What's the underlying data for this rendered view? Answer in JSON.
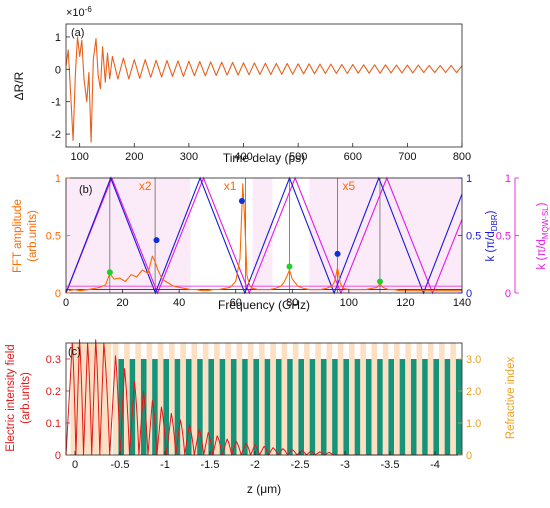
{
  "colors": {
    "trace": "#e8601c",
    "axis_left_b": "#ff6a00",
    "axis_right1_b": "#1a1adb",
    "axis_right2_b": "#e619e6",
    "violet": "#7a3ee6",
    "shade_pink": "#fbeaf8",
    "shade_peach": "#fde0c4",
    "green_bar": "#16947a",
    "marker_blue": "#0a2fd6",
    "marker_green": "#1fcf2c",
    "efield": "#e01818",
    "axis_c_right": "#f0a020",
    "axis_c_left": "#e01818"
  },
  "chart_data": [
    {
      "type": "line",
      "panel_label": "(a)",
      "exponent_label": "×10",
      "exponent_power": "-6",
      "xlabel": "Time delay (ps)",
      "ylabel": "ΔR/R",
      "xlim": [
        75,
        800
      ],
      "ylim": [
        -2.4,
        1.4
      ],
      "xticks": [
        100,
        200,
        300,
        400,
        500,
        600,
        700,
        800
      ],
      "yticks": [
        -2,
        -1,
        0,
        1
      ],
      "grid": false,
      "series": [
        {
          "x": [
            75,
            79,
            84,
            88,
            92,
            96,
            100,
            104,
            108,
            113,
            117,
            121,
            125,
            130,
            134,
            138,
            142,
            147,
            151,
            155,
            160,
            170,
            180,
            190,
            200,
            210,
            220,
            230,
            240,
            250,
            260,
            270,
            280,
            290,
            300,
            310,
            320,
            330,
            340,
            350,
            360,
            370,
            380,
            390,
            400,
            410,
            420,
            430,
            440,
            450,
            460,
            470,
            480,
            490,
            500,
            510,
            520,
            530,
            540,
            550,
            560,
            570,
            580,
            590,
            600,
            610,
            620,
            630,
            640,
            650,
            660,
            670,
            680,
            690,
            700,
            710,
            720,
            730,
            740,
            750,
            760,
            770,
            780,
            790,
            800
          ],
          "y": [
            0.1,
            0.6,
            -0.9,
            -2.2,
            -0.2,
            1.0,
            0.4,
            0.9,
            -0.3,
            -1.0,
            -0.1,
            -2.25,
            0.3,
            0.95,
            -0.2,
            -0.6,
            0.7,
            -0.4,
            0.5,
            -0.3,
            0.4,
            -0.3,
            0.35,
            -0.3,
            0.3,
            -0.28,
            0.3,
            -0.25,
            0.28,
            -0.24,
            0.27,
            -0.22,
            0.26,
            -0.22,
            0.25,
            -0.2,
            0.24,
            -0.2,
            0.23,
            -0.19,
            0.22,
            -0.18,
            0.21,
            -0.18,
            0.2,
            -0.17,
            0.2,
            -0.16,
            0.19,
            -0.16,
            0.18,
            -0.15,
            0.18,
            -0.15,
            0.17,
            -0.14,
            0.17,
            -0.14,
            0.16,
            -0.13,
            0.16,
            -0.13,
            0.15,
            -0.13,
            0.15,
            -0.12,
            0.14,
            -0.12,
            0.14,
            -0.12,
            0.14,
            -0.11,
            0.13,
            -0.11,
            0.13,
            -0.11,
            0.13,
            -0.1,
            0.12,
            -0.1,
            0.12,
            -0.1,
            0.12,
            -0.1,
            0.11
          ]
        }
      ]
    },
    {
      "type": "line",
      "panel_label": "(b)",
      "xlabel": "Frequency (GHz)",
      "ylabel_left": "FFT amplitude",
      "ylabel_left_units": "(arb.units)",
      "ylabel_right1": "k (π/d",
      "ylabel_right1_sub": "DBR",
      "ylabel_right2": "k (π/d",
      "ylabel_right2_sub": "MQW-SL",
      "xlim": [
        0,
        140
      ],
      "ylim": [
        0,
        1
      ],
      "xticks": [
        0,
        20,
        40,
        60,
        80,
        100,
        120,
        140
      ],
      "yticks_left": [
        0,
        0.5,
        1
      ],
      "yticks_right1": [
        0,
        0.5,
        1
      ],
      "yticks_right2": [
        0,
        0.5,
        1
      ],
      "multipliers": [
        {
          "label": "x2",
          "x": 28,
          "y": 0.93
        },
        {
          "label": "x1",
          "x": 58,
          "y": 0.93
        },
        {
          "label": "x5",
          "x": 100,
          "y": 0.93
        }
      ],
      "shaded_bands": [
        [
          0,
          44
        ],
        [
          66,
          73
        ],
        [
          86,
          140
        ]
      ],
      "vertical_lines": [
        15.5,
        31.5,
        63.5,
        79,
        96,
        111
      ],
      "fft": {
        "x": [
          1,
          3,
          5,
          8,
          10,
          12,
          14,
          15.5,
          17,
          19,
          21,
          23,
          25,
          27,
          29,
          30.5,
          31.5,
          32.5,
          34,
          36,
          38,
          40,
          42,
          44,
          46,
          48,
          50,
          52,
          54,
          56,
          58,
          60,
          61.5,
          62.5,
          63.2,
          64,
          65,
          66,
          68,
          70,
          72,
          74,
          76,
          77,
          78,
          79,
          80,
          82,
          84,
          86,
          88,
          90,
          92,
          94,
          95,
          96,
          97,
          98,
          100,
          102,
          104,
          106,
          108,
          110,
          111,
          112,
          114,
          116,
          118,
          120,
          124,
          128,
          132,
          136,
          140
        ],
        "y": [
          0.02,
          0.03,
          0.02,
          0.03,
          0.04,
          0.05,
          0.07,
          0.17,
          0.12,
          0.13,
          0.1,
          0.16,
          0.14,
          0.2,
          0.17,
          0.32,
          0.27,
          0.2,
          0.12,
          0.09,
          0.06,
          0.05,
          0.04,
          0.03,
          0.03,
          0.02,
          0.02,
          0.03,
          0.03,
          0.04,
          0.05,
          0.1,
          0.3,
          0.95,
          0.62,
          0.15,
          0.06,
          0.04,
          0.03,
          0.03,
          0.03,
          0.04,
          0.06,
          0.09,
          0.14,
          0.2,
          0.12,
          0.06,
          0.04,
          0.03,
          0.03,
          0.03,
          0.04,
          0.06,
          0.1,
          0.22,
          0.08,
          0.04,
          0.03,
          0.03,
          0.03,
          0.03,
          0.04,
          0.05,
          0.08,
          0.05,
          0.03,
          0.03,
          0.02,
          0.02,
          0.02,
          0.02,
          0.02,
          0.02,
          0.02
        ]
      },
      "dispersion_dbr": {
        "x": [
          0,
          15.8,
          31.6,
          47.4,
          63.2,
          79.0,
          94.8,
          110.6,
          126.4,
          140
        ],
        "y": [
          0,
          1,
          0,
          1,
          0,
          1,
          0,
          1,
          0,
          0.86
        ]
      },
      "dispersion_mqw": {
        "x": [
          0,
          16.2,
          32.4,
          48.6,
          64.8,
          81.0,
          97.2,
          113.4,
          129.6,
          140
        ],
        "y": [
          0,
          1,
          0,
          1,
          0,
          1,
          0,
          1,
          0,
          0.64
        ]
      },
      "blue_markers": [
        [
          32,
          0.46
        ],
        [
          62.2,
          0.8
        ],
        [
          96,
          0.34
        ]
      ],
      "green_markers": [
        [
          15.5,
          0.18
        ],
        [
          79,
          0.23
        ],
        [
          111,
          0.1
        ]
      ]
    },
    {
      "type": "line",
      "panel_label": "(c)",
      "xlabel": "z (μm)",
      "ylabel_left": "Electric intensity field",
      "ylabel_left_units": "(arb.units)",
      "ylabel_right": "Refractive index",
      "xlim": [
        0.1,
        -4.3
      ],
      "ylim_left": [
        0,
        0.35
      ],
      "ylim_right": [
        0,
        3.5
      ],
      "xticks": [
        0,
        -0.5,
        -1,
        -1.5,
        -2,
        -2.5,
        -3,
        -3.5,
        -4
      ],
      "xticklabels": [
        "0",
        "-0.5",
        "-1",
        "-1.5",
        "-2",
        "-2.5",
        "-3",
        "-3.5",
        "-4"
      ],
      "yticks_left": [
        0,
        0.1,
        0.2,
        0.3
      ],
      "yticks_right": [
        0,
        1.0,
        2.0,
        3.0
      ],
      "yticklabels_right": [
        "0",
        "1.0",
        "2.0",
        "3.0"
      ],
      "refractive_index": {
        "layers_start": -0.42,
        "period": 0.125,
        "high_index": 3.5,
        "low_index": 3.0,
        "cap_region": [
          0.05,
          -0.4
        ],
        "cap_index": 3.5
      },
      "efield": {
        "peaks_z": [
          0.03,
          -0.05,
          -0.14,
          -0.23,
          -0.32,
          -0.45,
          -0.55,
          -0.66,
          -0.76,
          -0.86,
          -0.96,
          -1.07,
          -1.17,
          -1.27,
          -1.38,
          -1.48,
          -1.58,
          -1.69,
          -1.79,
          -1.9,
          -2.0,
          -2.1,
          -2.2,
          -2.31,
          -2.41,
          -2.52,
          -2.62,
          -2.72,
          -2.82
        ],
        "peaks_value": [
          0.35,
          0.36,
          0.35,
          0.36,
          0.35,
          0.31,
          0.27,
          0.23,
          0.2,
          0.17,
          0.15,
          0.13,
          0.11,
          0.095,
          0.08,
          0.07,
          0.06,
          0.05,
          0.043,
          0.037,
          0.032,
          0.027,
          0.023,
          0.02,
          0.017,
          0.014,
          0.012,
          0.01,
          0.008
        ]
      }
    }
  ]
}
